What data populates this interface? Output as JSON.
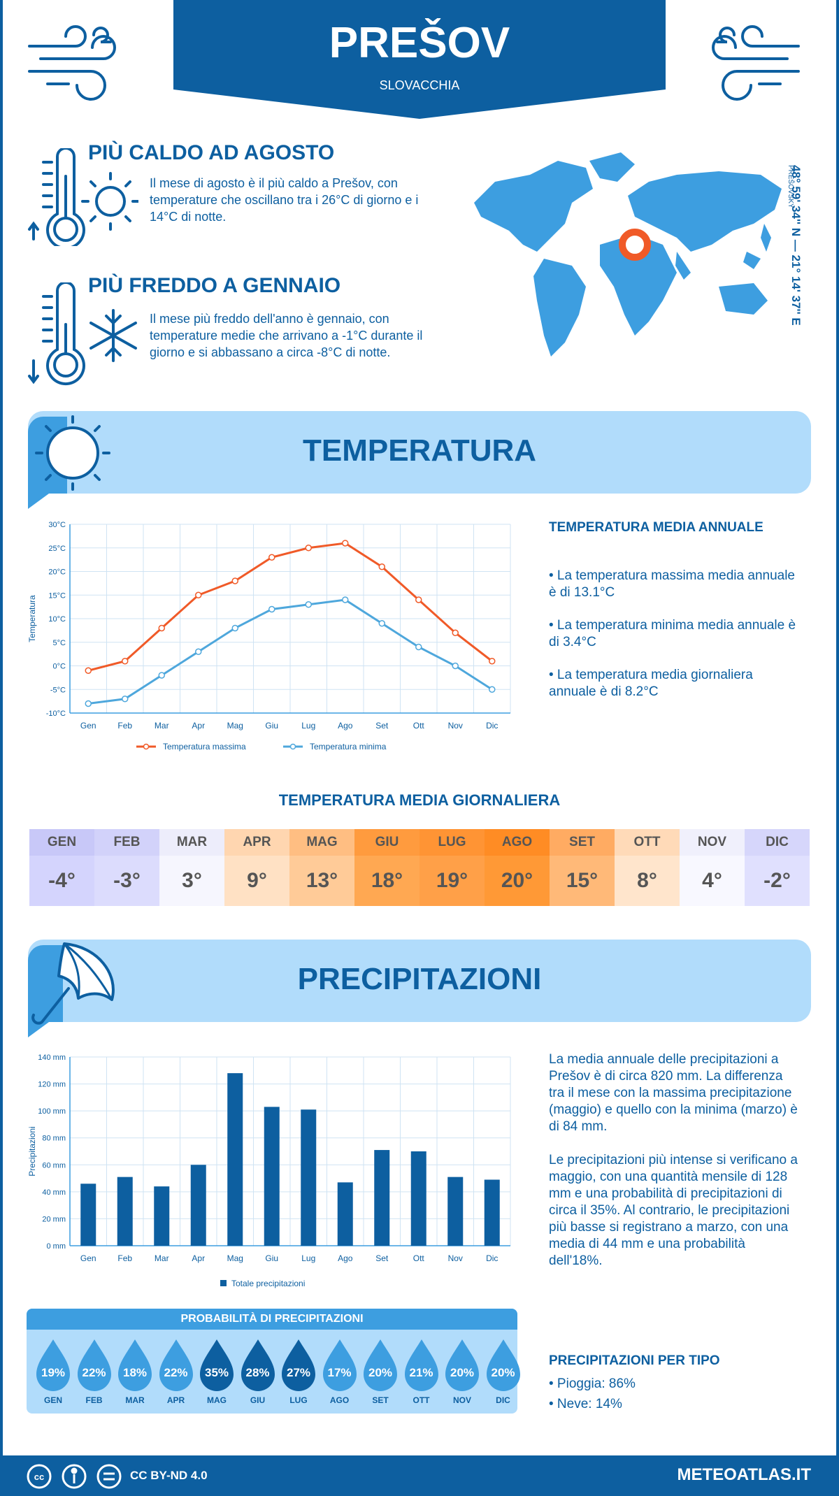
{
  "header": {
    "city": "PREŠOV",
    "country": "SLOVACCHIA"
  },
  "coords": {
    "text": "48° 59' 34'' N — 21° 14' 37'' E",
    "region": "PREŠOVSKÝ"
  },
  "hottest": {
    "title": "PIÙ CALDO AD AGOSTO",
    "text": "Il mese di agosto è il più caldo a Prešov, con temperature che oscillano tra i 26°C di giorno e i 14°C di notte."
  },
  "coldest": {
    "title": "PIÙ FREDDO A GENNAIO",
    "text": "Il mese più freddo dell'anno è gennaio, con temperature medie che arrivano a -1°C durante il giorno e si abbassano a circa -8°C di notte."
  },
  "temp_section": {
    "title": "TEMPERATURA"
  },
  "temp_annual": {
    "title": "TEMPERATURA MEDIA ANNUALE",
    "max": "• La temperatura massima media annuale è di 13.1°C",
    "min": "• La temperatura minima media annuale è di 3.4°C",
    "avg": "• La temperatura media giornaliera annuale è di 8.2°C"
  },
  "daily_title": "TEMPERATURA MEDIA GIORNALIERA",
  "daily": [
    {
      "m": "GEN",
      "v": "-4°",
      "bg": "#d4d4fd",
      "hb": "#c8c8f8"
    },
    {
      "m": "FEB",
      "v": "-3°",
      "bg": "#dcdcfd",
      "hb": "#d2d2fa"
    },
    {
      "m": "MAR",
      "v": "3°",
      "bg": "#f6f6fe",
      "hb": "#ededfb"
    },
    {
      "m": "APR",
      "v": "9°",
      "bg": "#ffe1c4",
      "hb": "#ffd6b0"
    },
    {
      "m": "MAG",
      "v": "13°",
      "bg": "#ffcb98",
      "hb": "#ffbe82"
    },
    {
      "m": "GIU",
      "v": "18°",
      "bg": "#ffa852",
      "hb": "#ff9b3e"
    },
    {
      "m": "LUG",
      "v": "19°",
      "bg": "#ffa048",
      "hb": "#ff9434"
    },
    {
      "m": "AGO",
      "v": "20°",
      "bg": "#ff9936",
      "hb": "#ff8c24"
    },
    {
      "m": "SET",
      "v": "15°",
      "bg": "#ffb978",
      "hb": "#ffab62"
    },
    {
      "m": "OTT",
      "v": "8°",
      "bg": "#ffe5cc",
      "hb": "#ffdab8"
    },
    {
      "m": "NOV",
      "v": "4°",
      "bg": "#f8f8ff",
      "hb": "#f0f0fc"
    },
    {
      "m": "DIC",
      "v": "-2°",
      "bg": "#e0e0fe",
      "hb": "#d6d6fb"
    }
  ],
  "precip_section": {
    "title": "PRECIPITAZIONI"
  },
  "precip_text": {
    "p1": "La media annuale delle precipitazioni a Prešov è di circa 820 mm. La differenza tra il mese con la massima precipitazione (maggio) e quello con la minima (marzo) è di 84 mm.",
    "p2": "Le precipitazioni più intense si verificano a maggio, con una quantità mensile di 128 mm e una probabilità di precipitazioni di circa il 35%. Al contrario, le precipitazioni più basse si registrano a marzo, con una media di 44 mm e una probabilità dell'18%."
  },
  "prob": {
    "title": "PROBABILITÀ DI PRECIPITAZIONI",
    "items": [
      {
        "m": "GEN",
        "p": "19%",
        "c": "#3d9ee0"
      },
      {
        "m": "FEB",
        "p": "22%",
        "c": "#3d9ee0"
      },
      {
        "m": "MAR",
        "p": "18%",
        "c": "#3d9ee0"
      },
      {
        "m": "APR",
        "p": "22%",
        "c": "#3d9ee0"
      },
      {
        "m": "MAG",
        "p": "35%",
        "c": "#0d5fa0"
      },
      {
        "m": "GIU",
        "p": "28%",
        "c": "#0d5fa0"
      },
      {
        "m": "LUG",
        "p": "27%",
        "c": "#0d5fa0"
      },
      {
        "m": "AGO",
        "p": "17%",
        "c": "#3d9ee0"
      },
      {
        "m": "SET",
        "p": "20%",
        "c": "#3d9ee0"
      },
      {
        "m": "OTT",
        "p": "21%",
        "c": "#3d9ee0"
      },
      {
        "m": "NOV",
        "p": "20%",
        "c": "#3d9ee0"
      },
      {
        "m": "DIC",
        "p": "20%",
        "c": "#3d9ee0"
      }
    ]
  },
  "precip_type": {
    "title": "PRECIPITAZIONI PER TIPO",
    "rain": "• Pioggia: 86%",
    "snow": "• Neve: 14%"
  },
  "footer": {
    "license": "CC BY-ND 4.0",
    "site": "METEOATLAS.IT"
  },
  "chart_data": [
    {
      "type": "line",
      "categories": [
        "Gen",
        "Feb",
        "Mar",
        "Apr",
        "Mag",
        "Giu",
        "Lug",
        "Ago",
        "Set",
        "Ott",
        "Nov",
        "Dic"
      ],
      "ylabel": "Temperatura",
      "ylim": [
        -10,
        30
      ],
      "yticks": [
        "-10°C",
        "-5°C",
        "0°C",
        "5°C",
        "10°C",
        "15°C",
        "20°C",
        "25°C",
        "30°C"
      ],
      "series": [
        {
          "name": "Temperatura massima",
          "color": "#f05a28",
          "values": [
            -1,
            1,
            8,
            15,
            18,
            23,
            25,
            26,
            21,
            14,
            7,
            1
          ]
        },
        {
          "name": "Temperatura minima",
          "color": "#4ea7dc",
          "values": [
            -8,
            -7,
            -2,
            3,
            8,
            12,
            13,
            14,
            9,
            4,
            0,
            -5
          ]
        }
      ],
      "grid": true,
      "legend": "bottom"
    },
    {
      "type": "bar",
      "categories": [
        "Gen",
        "Feb",
        "Mar",
        "Apr",
        "Mag",
        "Giu",
        "Lug",
        "Ago",
        "Set",
        "Ott",
        "Nov",
        "Dic"
      ],
      "ylabel": "Precipitazioni",
      "ylim": [
        0,
        140
      ],
      "yticks": [
        "0 mm",
        "20 mm",
        "40 mm",
        "60 mm",
        "80 mm",
        "100 mm",
        "120 mm",
        "140 mm"
      ],
      "series": [
        {
          "name": "Totale precipitazioni",
          "color": "#0d5fa0",
          "values": [
            46,
            51,
            44,
            60,
            128,
            103,
            101,
            47,
            71,
            70,
            51,
            49
          ]
        }
      ],
      "grid": true,
      "legend": "bottom"
    }
  ]
}
